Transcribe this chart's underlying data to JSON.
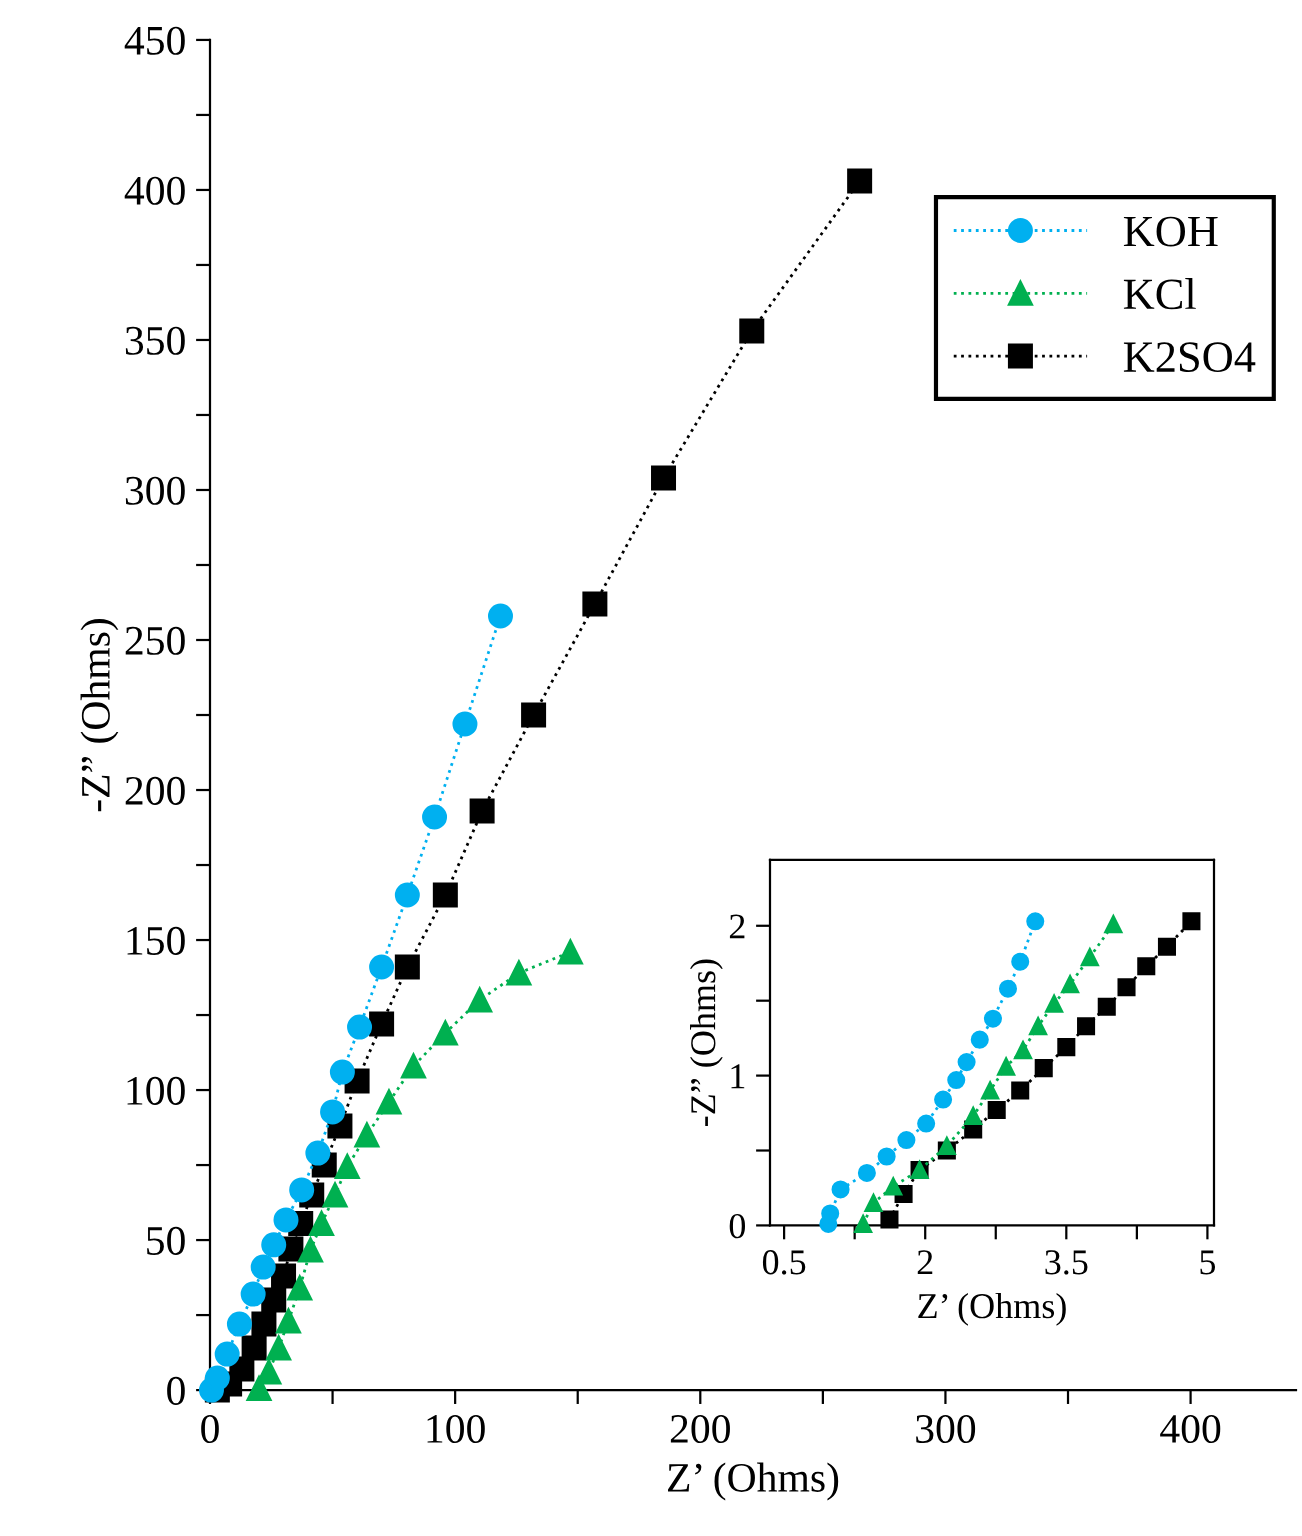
{
  "chart_data": [
    {
      "type": "line",
      "xlabel": "Z’ (Ohms)",
      "ylabel": "-Z” (Ohms)",
      "xlim": [
        0,
        443
      ],
      "ylim": [
        0,
        450
      ],
      "xticks": [
        0,
        {
          "value": 50,
          "label": null
        },
        100,
        {
          "value": 150,
          "label": null
        },
        200,
        {
          "value": 250,
          "label": null
        },
        300,
        {
          "value": 350,
          "label": null
        },
        400
      ],
      "yticks": [
        0,
        {
          "value": 25,
          "label": null
        },
        50,
        {
          "value": 75,
          "label": null
        },
        100,
        {
          "value": 125,
          "label": null
        },
        150,
        {
          "value": 175,
          "label": null
        },
        200,
        {
          "value": 225,
          "label": null
        },
        250,
        {
          "value": 275,
          "label": null
        },
        300,
        {
          "value": 325,
          "label": null
        },
        350,
        {
          "value": 375,
          "label": null
        },
        400,
        {
          "value": 425,
          "label": null
        },
        450
      ],
      "legend": "top right",
      "line_style": "dotted",
      "grid": false,
      "series": [
        {
          "name": "KOH",
          "color": "#00b0f0",
          "marker": "circle",
          "x": [
            0.6,
            3,
            7,
            12,
            17.6,
            21.7,
            26,
            31,
            37.4,
            44,
            50,
            54,
            61,
            70,
            80.5,
            91.6,
            104,
            118.5
          ],
          "values": [
            0,
            4,
            12,
            22,
            32,
            41,
            48.4,
            56.7,
            66.7,
            79,
            92.7,
            106,
            121,
            141,
            165,
            191,
            222,
            258
          ]
        },
        {
          "name": "KCl",
          "color": "#00b050",
          "marker": "triangle",
          "x": [
            20,
            24,
            28,
            32,
            36.6,
            41,
            45.5,
            51,
            56,
            64,
            73,
            83,
            96,
            110,
            126,
            147
          ],
          "values": [
            0.5,
            6,
            14,
            23,
            34,
            46.7,
            55.5,
            65,
            74.5,
            85,
            96,
            108,
            119,
            130,
            139,
            146
          ]
        },
        {
          "name": "K2SO4",
          "color": "#000000",
          "marker": "square",
          "x": [
            3,
            8,
            13,
            18,
            22,
            26,
            30,
            33,
            37,
            41.5,
            46.6,
            53,
            60,
            70,
            80.5,
            96,
            111,
            132,
            157,
            185,
            221,
            265
          ],
          "values": [
            0,
            2,
            7,
            14,
            22,
            30,
            38,
            47,
            55.5,
            65,
            75,
            88,
            103,
            122,
            141,
            165,
            193,
            225,
            262,
            304,
            353,
            403
          ]
        }
      ]
    },
    {
      "type": "line",
      "xlabel": "Z’ (Ohms)",
      "ylabel": "-Z” (Ohms)",
      "xlim": [
        0.35,
        5.07
      ],
      "ylim": [
        0,
        2.44
      ],
      "xticks": [
        0.5,
        {
          "value": 1.25,
          "label": null
        },
        2,
        {
          "value": 2.75,
          "label": null
        },
        3.5,
        {
          "value": 4.25,
          "label": null
        },
        5
      ],
      "yticks": [
        0,
        {
          "value": 0.5,
          "label": null
        },
        1,
        {
          "value": 1.5,
          "label": null
        },
        2
      ],
      "legend": false,
      "line_style": "dotted",
      "grid": false,
      "series": [
        {
          "color": "#00b0f0",
          "marker": "circle",
          "x": [
            0.97,
            0.99,
            1.1,
            1.38,
            1.59,
            1.8,
            2.01,
            2.19,
            2.33,
            2.44,
            2.58,
            2.72,
            2.88,
            3.01,
            3.17
          ],
          "values": [
            0.01,
            0.08,
            0.24,
            0.35,
            0.46,
            0.57,
            0.68,
            0.84,
            0.97,
            1.09,
            1.24,
            1.38,
            1.58,
            1.76,
            2.03
          ]
        },
        {
          "color": "#00b050",
          "marker": "triangle",
          "x": [
            1.34,
            1.45,
            1.66,
            1.94,
            2.23,
            2.51,
            2.69,
            2.86,
            3.04,
            3.2,
            3.37,
            3.54,
            3.75,
            4.0
          ],
          "values": [
            0.01,
            0.15,
            0.26,
            0.37,
            0.53,
            0.73,
            0.9,
            1.06,
            1.17,
            1.33,
            1.48,
            1.61,
            1.79,
            2.01
          ]
        },
        {
          "color": "#000000",
          "marker": "square",
          "x": [
            1.62,
            1.77,
            1.94,
            2.23,
            2.51,
            2.76,
            3.01,
            3.26,
            3.5,
            3.71,
            3.93,
            4.14,
            4.35,
            4.57,
            4.83
          ],
          "values": [
            0.04,
            0.21,
            0.37,
            0.5,
            0.64,
            0.77,
            0.9,
            1.05,
            1.19,
            1.33,
            1.46,
            1.59,
            1.73,
            1.86,
            2.03
          ]
        }
      ]
    }
  ]
}
